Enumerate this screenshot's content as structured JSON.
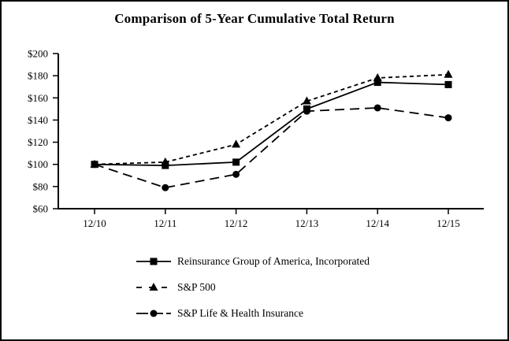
{
  "frame": {
    "background": "#ffffff",
    "border_color": "#000000"
  },
  "chart_data": {
    "type": "line",
    "title": "Comparison of 5-Year Cumulative Total Return",
    "categories": [
      "12/10",
      "12/11",
      "12/12",
      "12/13",
      "12/14",
      "12/15"
    ],
    "series": [
      {
        "name": "Reinsurance Group of America, Incorporated",
        "values": [
          100,
          99,
          102,
          150,
          174,
          172
        ],
        "marker": "square",
        "line_style": "solid",
        "color": "#000000"
      },
      {
        "name": "S&P 500",
        "values": [
          100,
          102,
          118,
          157,
          178,
          181
        ],
        "marker": "triangle",
        "line_style": "short-dash",
        "color": "#000000"
      },
      {
        "name": "S&P Life & Health Insurance",
        "values": [
          100,
          79,
          91,
          148,
          151,
          142
        ],
        "marker": "circle",
        "line_style": "long-dash",
        "color": "#000000"
      }
    ],
    "ylim": [
      60,
      200
    ],
    "y_ticks": [
      200,
      180,
      160,
      140,
      120,
      100,
      80,
      60
    ],
    "y_tick_labels": [
      "$200",
      "$180",
      "$160",
      "$140",
      "$120",
      "$100",
      "$80",
      "$60"
    ],
    "xlabel": "",
    "ylabel": "",
    "grid": false,
    "legend_position": "bottom-left",
    "axis_color": "#000000",
    "text_color": "#000000"
  }
}
